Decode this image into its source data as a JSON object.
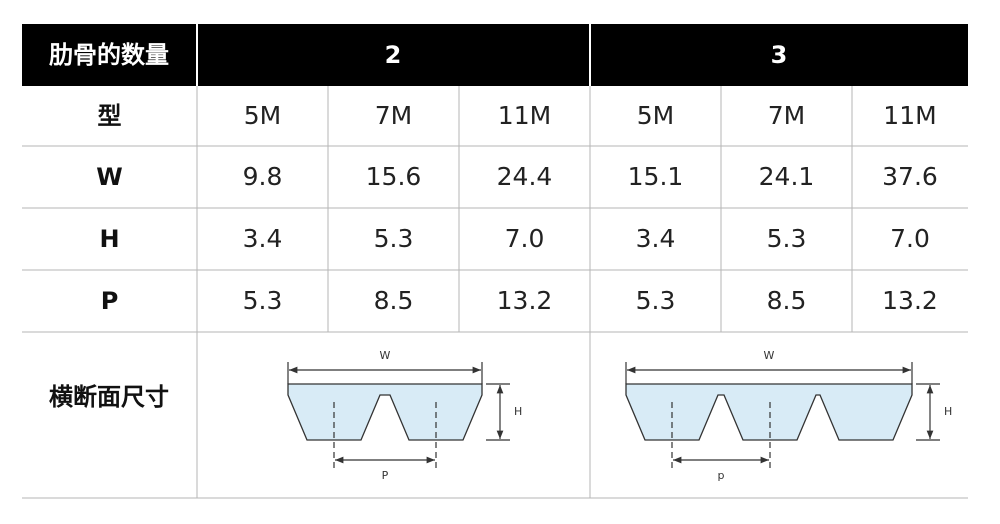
{
  "table": {
    "header": [
      "肋骨的数量",
      "2",
      "3"
    ],
    "rows": [
      [
        "型",
        "5M",
        "7M",
        "11M",
        "5M",
        "7M",
        "11M"
      ],
      [
        "W",
        "9.8",
        "15.6",
        "24.4",
        "15.1",
        "24.1",
        "37.6"
      ],
      [
        "H",
        "3.4",
        "5.3",
        "7.0",
        "3.4",
        "5.3",
        "7.0"
      ],
      [
        "P",
        "5.3",
        "8.5",
        "13.2",
        "5.3",
        "8.5",
        "13.2"
      ]
    ],
    "section_label": "横断面尺寸"
  },
  "diagrams": [
    {
      "w": "W",
      "h": "H",
      "p": "P"
    },
    {
      "w": "W",
      "h": "H",
      "p": "p"
    }
  ]
}
